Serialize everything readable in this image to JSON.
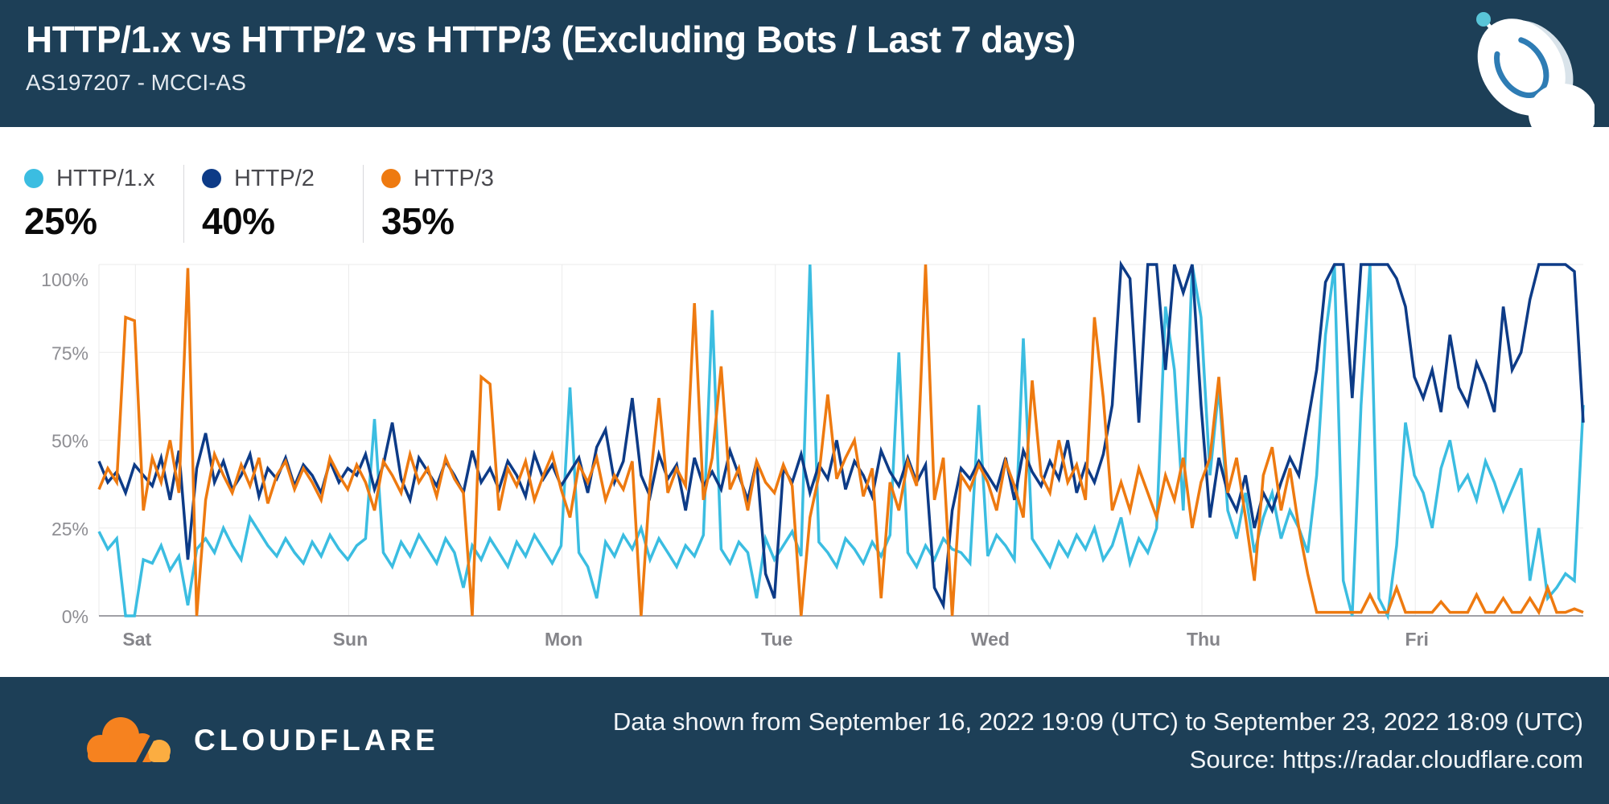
{
  "header": {
    "title": "HTTP/1.x vs HTTP/2 vs HTTP/3 (Excluding Bots / Last 7 days)",
    "subtitle": "AS197207 - MCCI-AS",
    "icon": "radar-dish-icon"
  },
  "legend": [
    {
      "label": "HTTP/1.x",
      "value": "25%",
      "color": "#3BBDE1"
    },
    {
      "label": "HTTP/2",
      "value": "40%",
      "color": "#0D3B87"
    },
    {
      "label": "HTTP/3",
      "value": "35%",
      "color": "#EE7A10"
    }
  ],
  "footer": {
    "brand": "CLOUDFLARE",
    "logo_icon": "cloudflare-cloud-icon",
    "line1": "Data shown from September 16, 2022 19:09 (UTC) to September 23, 2022 18:09 (UTC)",
    "line2": "Source: https://radar.cloudflare.com"
  },
  "colors": {
    "brand_bg": "#1D3F57",
    "http1x": "#3BBDE1",
    "http2": "#0D3B87",
    "http3": "#EE7A10",
    "cloud_orange": "#F6821F",
    "cloud_orange_light": "#FBAD41",
    "grid": "#EBEBEB",
    "axis": "#A0A0A5",
    "y_tick_text": "#8E8E93",
    "x_tick_text": "#85858A"
  },
  "chart_data": {
    "type": "line",
    "title": "HTTP/1.x vs HTTP/2 vs HTTP/3 share over last 7 days",
    "xlabel": "",
    "ylabel": "",
    "x_unit": "hours since 2022-09-16 19:09 UTC, one point per hour",
    "x_range_hours": 167,
    "ylim": [
      0,
      100
    ],
    "grid": true,
    "legend_position": "top-left-summary",
    "y_tick_labels": [
      "100%",
      "75%",
      "50%",
      "25%",
      "0%"
    ],
    "x_tick_labels": [
      "Sat",
      "Sun",
      "Mon",
      "Tue",
      "Wed",
      "Thu",
      "Fri"
    ],
    "x_tick_hours": [
      4.1,
      28.1,
      52.1,
      76.1,
      100.1,
      124.1,
      148.1
    ],
    "series": [
      {
        "name": "HTTP/1.x",
        "color": "#3BBDE1",
        "values": [
          24,
          19,
          22,
          0,
          0,
          16,
          15,
          20,
          13,
          17,
          3,
          19,
          22,
          18,
          25,
          20,
          16,
          28,
          24,
          20,
          17,
          22,
          18,
          15,
          21,
          17,
          23,
          19,
          16,
          20,
          22,
          56,
          18,
          14,
          21,
          17,
          23,
          19,
          15,
          22,
          18,
          8,
          20,
          16,
          22,
          18,
          14,
          21,
          17,
          23,
          19,
          15,
          20,
          65,
          18,
          14,
          5,
          21,
          17,
          23,
          19,
          25,
          16,
          22,
          18,
          14,
          20,
          17,
          23,
          87,
          19,
          15,
          21,
          18,
          5,
          22,
          16,
          20,
          24,
          17,
          100,
          21,
          18,
          14,
          22,
          19,
          15,
          21,
          17,
          23,
          75,
          18,
          14,
          20,
          16,
          22,
          19,
          18,
          15,
          60,
          17,
          23,
          20,
          16,
          79,
          22,
          18,
          14,
          21,
          17,
          23,
          19,
          25,
          16,
          20,
          28,
          15,
          22,
          18,
          25,
          88,
          70,
          30,
          100,
          85,
          40,
          65,
          30,
          22,
          35,
          18,
          28,
          35,
          22,
          30,
          25,
          18,
          40,
          80,
          100,
          10,
          0,
          60,
          100,
          5,
          0,
          20,
          55,
          40,
          35,
          25,
          42,
          50,
          36,
          40,
          33,
          44,
          38,
          30,
          36,
          42,
          10,
          25,
          5,
          8,
          12,
          10,
          60
        ]
      },
      {
        "name": "HTTP/2",
        "color": "#0D3B87",
        "values": [
          44,
          38,
          41,
          35,
          43,
          40,
          37,
          45,
          33,
          47,
          16,
          42,
          52,
          38,
          44,
          36,
          40,
          46,
          34,
          42,
          39,
          45,
          37,
          43,
          40,
          35,
          44,
          38,
          42,
          40,
          46,
          36,
          43,
          55,
          39,
          33,
          45,
          41,
          37,
          44,
          40,
          35,
          47,
          38,
          42,
          36,
          44,
          40,
          34,
          46,
          39,
          43,
          37,
          41,
          45,
          35,
          48,
          53,
          38,
          44,
          62,
          40,
          34,
          46,
          39,
          43,
          30,
          45,
          37,
          41,
          36,
          47,
          40,
          33,
          44,
          12,
          5,
          42,
          38,
          46,
          35,
          43,
          39,
          50,
          36,
          44,
          40,
          34,
          47,
          41,
          37,
          45,
          38,
          43,
          8,
          3,
          30,
          42,
          39,
          44,
          40,
          36,
          45,
          33,
          47,
          41,
          37,
          44,
          39,
          50,
          35,
          43,
          38,
          46,
          60,
          100,
          96,
          55,
          100,
          100,
          70,
          100,
          92,
          100,
          60,
          28,
          45,
          35,
          30,
          40,
          25,
          35,
          30,
          38,
          45,
          40,
          55,
          70,
          95,
          100,
          100,
          62,
          100,
          100,
          100,
          100,
          96,
          88,
          68,
          62,
          70,
          58,
          80,
          65,
          60,
          72,
          66,
          58,
          88,
          70,
          75,
          90,
          100,
          100,
          100,
          100,
          98,
          55
        ]
      },
      {
        "name": "HTTP/3",
        "color": "#EE7A10",
        "values": [
          36,
          42,
          38,
          85,
          84,
          30,
          45,
          38,
          50,
          35,
          99,
          0,
          33,
          46,
          40,
          35,
          43,
          37,
          45,
          32,
          40,
          44,
          36,
          42,
          38,
          33,
          45,
          40,
          36,
          43,
          38,
          30,
          44,
          40,
          35,
          46,
          38,
          42,
          34,
          45,
          39,
          35,
          0,
          68,
          66,
          30,
          42,
          37,
          44,
          33,
          40,
          46,
          36,
          28,
          43,
          38,
          45,
          33,
          40,
          36,
          44,
          0,
          38,
          62,
          35,
          42,
          37,
          89,
          33,
          45,
          71,
          36,
          42,
          30,
          44,
          38,
          35,
          43,
          37,
          0,
          28,
          40,
          63,
          39,
          45,
          50,
          34,
          42,
          5,
          38,
          30,
          44,
          37,
          100,
          33,
          45,
          0,
          40,
          36,
          43,
          38,
          30,
          44,
          37,
          28,
          67,
          40,
          35,
          50,
          38,
          43,
          33,
          85,
          62,
          30,
          38,
          30,
          42,
          35,
          28,
          40,
          33,
          45,
          25,
          38,
          45,
          68,
          35,
          45,
          28,
          10,
          40,
          48,
          30,
          42,
          25,
          12,
          1,
          1,
          1,
          1,
          1,
          1,
          6,
          1,
          1,
          8,
          1,
          1,
          1,
          1,
          4,
          1,
          1,
          1,
          6,
          1,
          1,
          5,
          1,
          1,
          5,
          1,
          8,
          1,
          1,
          2,
          1
        ]
      }
    ]
  }
}
